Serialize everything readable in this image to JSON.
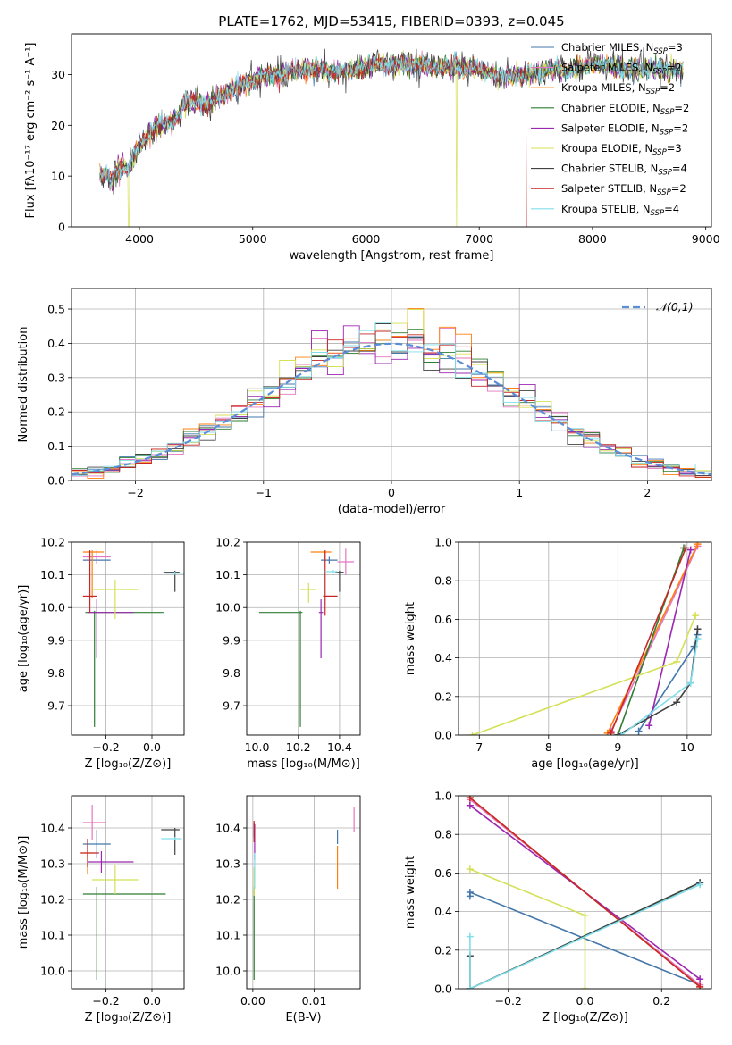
{
  "figure_title": "PLATE=1762, MJD=53415, FIBERID=0393, z=0.045",
  "colors": {
    "Chabrier MILES": "#4477aa",
    "Salpeter MILES": "#e377c2",
    "Kroupa MILES": "#ff7f0e",
    "Chabrier ELODIE": "#2e7d32",
    "Salpeter ELODIE": "#9c27b0",
    "Kroupa ELODIE": "#d4e157",
    "Chabrier STELIB": "#424242",
    "Salpeter STELIB": "#c62828",
    "Kroupa STELIB": "#80deea",
    "normal": "#5b8dd9"
  },
  "chart_data": [
    {
      "id": "spectrum",
      "type": "line",
      "xlabel": "wavelength [Angstrom, rest frame]",
      "ylabel": "Flux [fλ10⁻¹⁷ erg cm⁻² s⁻¹ A⁻¹]",
      "xlim": [
        3400,
        9050
      ],
      "ylim": [
        0,
        38
      ],
      "xticks": [
        4000,
        5000,
        6000,
        7000,
        8000,
        9000
      ],
      "yticks": [
        0,
        10,
        20,
        30
      ],
      "grid": false,
      "legend_position": "right",
      "legend": [
        {
          "name": "Chabrier MILES",
          "sub": "SSP",
          "n": "=3"
        },
        {
          "name": "Salpeter MILES",
          "sub": "SSP",
          "n": "=2"
        },
        {
          "name": "Kroupa MILES",
          "sub": "SSP",
          "n": "=2"
        },
        {
          "name": "Chabrier ELODIE",
          "sub": "SSP",
          "n": "=2"
        },
        {
          "name": "Salpeter ELODIE",
          "sub": "SSP",
          "n": "=2"
        },
        {
          "name": "Kroupa ELODIE",
          "sub": "SSP",
          "n": "=3"
        },
        {
          "name": "Chabrier STELIB",
          "sub": "SSP",
          "n": "=4"
        },
        {
          "name": "Salpeter STELIB",
          "sub": "SSP",
          "n": "=2"
        },
        {
          "name": "Kroupa STELIB",
          "sub": "SSP",
          "n": "=4"
        }
      ],
      "spectrum_envelope": {
        "x": [
          3650,
          3700,
          3750,
          3800,
          3850,
          3900,
          3950,
          4000,
          4100,
          4200,
          4300,
          4400,
          4500,
          4600,
          4800,
          5000,
          5200,
          5400,
          5600,
          5800,
          6000,
          6200,
          6400,
          6600,
          6800,
          7000,
          7200,
          7400,
          7600,
          7800,
          8000,
          8200,
          8400,
          8600,
          8800
        ],
        "y": [
          10,
          10,
          9,
          11,
          12,
          11,
          14,
          16,
          19,
          20,
          21,
          24,
          25,
          24,
          27,
          29,
          30,
          31,
          31,
          30.5,
          31.5,
          32,
          32,
          31.5,
          31.5,
          31,
          29.5,
          30,
          31,
          31,
          32,
          31.5,
          31,
          31,
          31
        ],
        "drops": [
          {
            "series": "Kroupa ELODIE",
            "x": 3905
          },
          {
            "series": "Kroupa ELODIE",
            "x": 6800
          },
          {
            "series": "Salpeter STELIB",
            "x": 7420
          }
        ]
      }
    },
    {
      "id": "residuals",
      "type": "histogram",
      "xlabel": "(data-model)/error",
      "ylabel": "Normed distribution",
      "xlim": [
        -2.5,
        2.5
      ],
      "ylim": [
        0,
        0.56
      ],
      "xticks": [
        -2,
        -1,
        0,
        1,
        2
      ],
      "yticks": [
        0.0,
        0.1,
        0.2,
        0.3,
        0.4,
        0.5
      ],
      "grid": true,
      "legend_position": "top-right",
      "legend": [
        "𝒩(0,1)"
      ],
      "normal": {
        "mu": 0,
        "sigma": 1
      }
    },
    {
      "id": "age-vs-Z",
      "type": "scatter",
      "xlabel": "Z [log₁₀(Z/Z⊙)]",
      "ylabel": "age  [log₁₀(age/yr)]",
      "xlim": [
        -0.35,
        0.14
      ],
      "ylim": [
        9.61,
        10.2
      ],
      "xticks": [
        -0.2,
        0.0
      ],
      "yticks": [
        9.7,
        9.8,
        9.9,
        10.0,
        10.1,
        10.2
      ],
      "grid": true,
      "points": [
        {
          "series": "Chabrier MILES",
          "x": -0.24,
          "y": 10.145,
          "xerr": [
            0.06,
            0.06
          ],
          "yerr": [
            0.01,
            0.01
          ]
        },
        {
          "series": "Salpeter MILES",
          "x": -0.24,
          "y": 10.155,
          "xerr": [
            0.06,
            0.06
          ],
          "yerr": [
            0.02,
            0.02
          ]
        },
        {
          "series": "Kroupa MILES",
          "x": -0.26,
          "y": 10.17,
          "xerr": [
            0.04,
            0.05
          ],
          "yerr": [
            0.14,
            0.005
          ]
        },
        {
          "series": "Chabrier ELODIE",
          "x": -0.25,
          "y": 9.985,
          "xerr": [
            0.04,
            0.3
          ],
          "yerr": [
            0.35,
            0.005
          ]
        },
        {
          "series": "Salpeter ELODIE",
          "x": -0.24,
          "y": 9.985,
          "xerr": [
            0.04,
            0.16
          ],
          "yerr": [
            0.14,
            0.04
          ]
        },
        {
          "series": "Kroupa ELODIE",
          "x": -0.16,
          "y": 10.055,
          "xerr": [
            0.1,
            0.1
          ],
          "yerr": [
            0.09,
            0.03
          ]
        },
        {
          "series": "Chabrier STELIB",
          "x": 0.1,
          "y": 10.108,
          "xerr": [
            0.05,
            0.02
          ],
          "yerr": [
            0.06,
            0.005
          ]
        },
        {
          "series": "Salpeter STELIB",
          "x": -0.27,
          "y": 10.035,
          "xerr": [
            0.03,
            0.03
          ],
          "yerr": [
            0.05,
            0.14
          ]
        },
        {
          "series": "Kroupa STELIB",
          "x": 0.1,
          "y": 10.105,
          "xerr": [
            0.04,
            0.04
          ],
          "yerr": [
            0.005,
            0.005
          ]
        }
      ]
    },
    {
      "id": "age-vs-mass",
      "type": "scatter",
      "xlabel": "mass [log₁₀(M/M⊙)]",
      "ylabel": "",
      "xlim": [
        9.95,
        10.5
      ],
      "ylim": [
        9.61,
        10.2
      ],
      "xticks": [
        10.0,
        10.2,
        10.4
      ],
      "yticks": [
        9.7,
        9.8,
        9.9,
        10.0,
        10.1,
        10.2
      ],
      "grid": true,
      "points": [
        {
          "series": "Chabrier MILES",
          "x": 10.35,
          "y": 10.145,
          "xerr": [
            0.04,
            0.04
          ],
          "yerr": [
            0.01,
            0.01
          ]
        },
        {
          "series": "Salpeter MILES",
          "x": 10.43,
          "y": 10.14,
          "xerr": [
            0.04,
            0.04
          ],
          "yerr": [
            0.04,
            0.04
          ]
        },
        {
          "series": "Kroupa MILES",
          "x": 10.33,
          "y": 10.17,
          "xerr": [
            0.07,
            0.03
          ],
          "yerr": [
            0.03,
            0.005
          ]
        },
        {
          "series": "Chabrier ELODIE",
          "x": 10.21,
          "y": 9.985,
          "xerr": [
            0.2,
            0.01
          ],
          "yerr": [
            0.35,
            0.005
          ]
        },
        {
          "series": "Salpeter ELODIE",
          "x": 10.31,
          "y": 9.985,
          "xerr": [
            0.01,
            0.01
          ],
          "yerr": [
            0.14,
            0.04
          ]
        },
        {
          "series": "Kroupa ELODIE",
          "x": 10.25,
          "y": 10.055,
          "xerr": [
            0.04,
            0.04
          ],
          "yerr": [
            0.04,
            0.02
          ]
        },
        {
          "series": "Chabrier STELIB",
          "x": 10.4,
          "y": 10.108,
          "xerr": [
            0.02,
            0.02
          ],
          "yerr": [
            0.06,
            0.005
          ]
        },
        {
          "series": "Salpeter STELIB",
          "x": 10.33,
          "y": 10.035,
          "xerr": [
            0.01,
            0.06
          ],
          "yerr": [
            0.06,
            0.14
          ]
        },
        {
          "series": "Kroupa STELIB",
          "x": 10.37,
          "y": 10.11,
          "xerr": [
            0.04,
            0.02
          ],
          "yerr": [
            0.005,
            0.005
          ]
        }
      ]
    },
    {
      "id": "weight-vs-age",
      "type": "line",
      "xlabel": "age  [log₁₀(age/yr)]",
      "ylabel": "mass weight",
      "xlim": [
        6.7,
        10.35
      ],
      "ylim": [
        0,
        1
      ],
      "xticks": [
        7,
        8,
        9,
        10
      ],
      "yticks": [
        0.0,
        0.2,
        0.4,
        0.6,
        0.8,
        1.0
      ],
      "grid": true,
      "series": [
        {
          "name": "Chabrier MILES",
          "x": [
            9.3,
            10.1,
            10.15
          ],
          "y": [
            0.02,
            0.46,
            0.52
          ]
        },
        {
          "name": "Salpeter MILES",
          "x": [
            8.9,
            10.15
          ],
          "y": [
            0.02,
            0.98
          ]
        },
        {
          "name": "Kroupa MILES",
          "x": [
            8.85,
            10.15
          ],
          "y": [
            0.01,
            0.99
          ]
        },
        {
          "name": "Chabrier ELODIE",
          "x": [
            9.0,
            9.95
          ],
          "y": [
            0.0,
            0.97
          ]
        },
        {
          "name": "Salpeter ELODIE",
          "x": [
            9.45,
            10.05
          ],
          "y": [
            0.05,
            0.96
          ]
        },
        {
          "name": "Kroupa ELODIE",
          "x": [
            6.9,
            9.85,
            10.12
          ],
          "y": [
            0.0,
            0.38,
            0.62
          ]
        },
        {
          "name": "Chabrier STELIB",
          "x": [
            9.0,
            9.85,
            10.05,
            10.15
          ],
          "y": [
            0.0,
            0.17,
            0.27,
            0.55
          ]
        },
        {
          "name": "Salpeter STELIB",
          "x": [
            8.9,
            9.98
          ],
          "y": [
            0.01,
            0.97
          ]
        },
        {
          "name": "Kroupa STELIB",
          "x": [
            9.05,
            10.05,
            10.15
          ],
          "y": [
            0.0,
            0.27,
            0.5
          ]
        }
      ]
    },
    {
      "id": "mass-vs-Z",
      "type": "scatter",
      "xlabel": "Z [log₁₀(Z/Z⊙)]",
      "ylabel": "mass [log₁₀(M/M⊙)]",
      "xlim": [
        -0.35,
        0.14
      ],
      "ylim": [
        9.95,
        10.49
      ],
      "xticks": [
        -0.2,
        0.0
      ],
      "yticks": [
        10.0,
        10.1,
        10.2,
        10.3,
        10.4
      ],
      "grid": true,
      "points": [
        {
          "series": "Chabrier MILES",
          "x": -0.24,
          "y": 10.355,
          "xerr": [
            0.06,
            0.06
          ],
          "yerr": [
            0.04,
            0.04
          ]
        },
        {
          "series": "Salpeter MILES",
          "x": -0.26,
          "y": 10.415,
          "xerr": [
            0.04,
            0.06
          ],
          "yerr": [
            0.05,
            0.05
          ]
        },
        {
          "series": "Kroupa MILES",
          "x": -0.28,
          "y": 10.33,
          "xerr": [
            0.03,
            0.03
          ],
          "yerr": [
            0.06,
            0.02
          ]
        },
        {
          "series": "Chabrier ELODIE",
          "x": -0.24,
          "y": 10.215,
          "xerr": [
            0.06,
            0.3
          ],
          "yerr": [
            0.24,
            0.02
          ]
        },
        {
          "series": "Salpeter ELODIE",
          "x": -0.22,
          "y": 10.305,
          "xerr": [
            0.06,
            0.14
          ],
          "yerr": [
            0.03,
            0.03
          ]
        },
        {
          "series": "Kroupa ELODIE",
          "x": -0.16,
          "y": 10.255,
          "xerr": [
            0.1,
            0.1
          ],
          "yerr": [
            0.04,
            0.04
          ]
        },
        {
          "series": "Chabrier STELIB",
          "x": 0.1,
          "y": 10.395,
          "xerr": [
            0.06,
            0.02
          ],
          "yerr": [
            0.07,
            0.005
          ]
        },
        {
          "series": "Salpeter STELIB",
          "x": -0.28,
          "y": 10.33,
          "xerr": [
            0.03,
            0.05
          ],
          "yerr": [
            0.04,
            0.04
          ]
        },
        {
          "series": "Kroupa STELIB",
          "x": 0.1,
          "y": 10.37,
          "xerr": [
            0.06,
            0.03
          ],
          "yerr": [
            0.005,
            0.005
          ]
        }
      ]
    },
    {
      "id": "mass-vs-ebv",
      "type": "scatter",
      "xlabel": "E(B-V)",
      "ylabel": "",
      "xlim": [
        -0.001,
        0.0175
      ],
      "ylim": [
        9.95,
        10.49
      ],
      "xticks": [
        0.0,
        0.01
      ],
      "xtick_labels": [
        "0.00",
        "0.01"
      ],
      "yticks": [
        10.0,
        10.1,
        10.2,
        10.3,
        10.4
      ],
      "grid": true,
      "points": [
        {
          "series": "Chabrier MILES",
          "x": 0.0138,
          "y": 10.375,
          "xerr": [
            0,
            0
          ],
          "yerr": [
            0.02,
            0.02
          ]
        },
        {
          "series": "Salpeter MILES",
          "x": 0.0165,
          "y": 10.42,
          "xerr": [
            0,
            0
          ],
          "yerr": [
            0.03,
            0.04
          ]
        },
        {
          "series": "Kroupa MILES",
          "x": 0.0138,
          "y": 10.3,
          "xerr": [
            0,
            0
          ],
          "yerr": [
            0.07,
            0.05
          ]
        },
        {
          "series": "Chabrier ELODIE",
          "x": 0.0002,
          "y": 10.215,
          "xerr": [
            0,
            0
          ],
          "yerr": [
            0.24,
            0.02
          ]
        },
        {
          "series": "Salpeter ELODIE",
          "x": 0.0003,
          "y": 10.35,
          "xerr": [
            0,
            0
          ],
          "yerr": [
            0.04,
            0.06
          ]
        },
        {
          "series": "Kroupa ELODIE",
          "x": 0.0002,
          "y": 10.25,
          "xerr": [
            0,
            0
          ],
          "yerr": [
            0.04,
            0.04
          ]
        },
        {
          "series": "Chabrier STELIB",
          "x": 0.0002,
          "y": 10.395,
          "xerr": [
            0,
            0
          ],
          "yerr": [
            0.02,
            0.02
          ]
        },
        {
          "series": "Salpeter STELIB",
          "x": 0.0002,
          "y": 10.39,
          "xerr": [
            0,
            0
          ],
          "yerr": [
            0.03,
            0.03
          ]
        },
        {
          "series": "Kroupa STELIB",
          "x": 0.0003,
          "y": 10.28,
          "xerr": [
            0,
            0
          ],
          "yerr": [
            0.05,
            0.05
          ]
        }
      ]
    },
    {
      "id": "weight-vs-Z",
      "type": "line",
      "xlabel": "Z [log₁₀(Z/Z⊙)]",
      "ylabel": "mass weight",
      "xlim": [
        -0.33,
        0.33
      ],
      "ylim": [
        0,
        1
      ],
      "xticks": [
        -0.2,
        0.0,
        0.2
      ],
      "yticks": [
        0.0,
        0.2,
        0.4,
        0.6,
        0.8,
        1.0
      ],
      "grid": true,
      "series": [
        {
          "name": "Chabrier MILES",
          "x": [
            -0.3,
            -0.3,
            0.3
          ],
          "y": [
            0.48,
            0.5,
            0.02
          ]
        },
        {
          "name": "Salpeter MILES",
          "x": [
            -0.3,
            0.3
          ],
          "y": [
            0.98,
            0.02
          ]
        },
        {
          "name": "Kroupa MILES",
          "x": [
            -0.3,
            0.3
          ],
          "y": [
            0.99,
            0.01
          ]
        },
        {
          "name": "Chabrier ELODIE",
          "x": [
            -0.3,
            0.3
          ],
          "y": [
            0.0,
            0.55
          ]
        },
        {
          "name": "Salpeter ELODIE",
          "x": [
            -0.3,
            0.3
          ],
          "y": [
            0.95,
            0.05
          ]
        },
        {
          "name": "Kroupa ELODIE",
          "x": [
            -0.3,
            0.0,
            0.0
          ],
          "y": [
            0.62,
            0.38,
            0.0
          ]
        },
        {
          "name": "Chabrier STELIB",
          "x": [
            -0.3,
            -0.3,
            0.3
          ],
          "y": [
            0.17,
            0.0,
            0.55
          ]
        },
        {
          "name": "Salpeter STELIB",
          "x": [
            -0.3,
            0.3
          ],
          "y": [
            0.99,
            0.01
          ]
        },
        {
          "name": "Kroupa STELIB",
          "x": [
            -0.3,
            -0.3,
            0.3
          ],
          "y": [
            0.27,
            0.0,
            0.54
          ]
        }
      ]
    }
  ]
}
